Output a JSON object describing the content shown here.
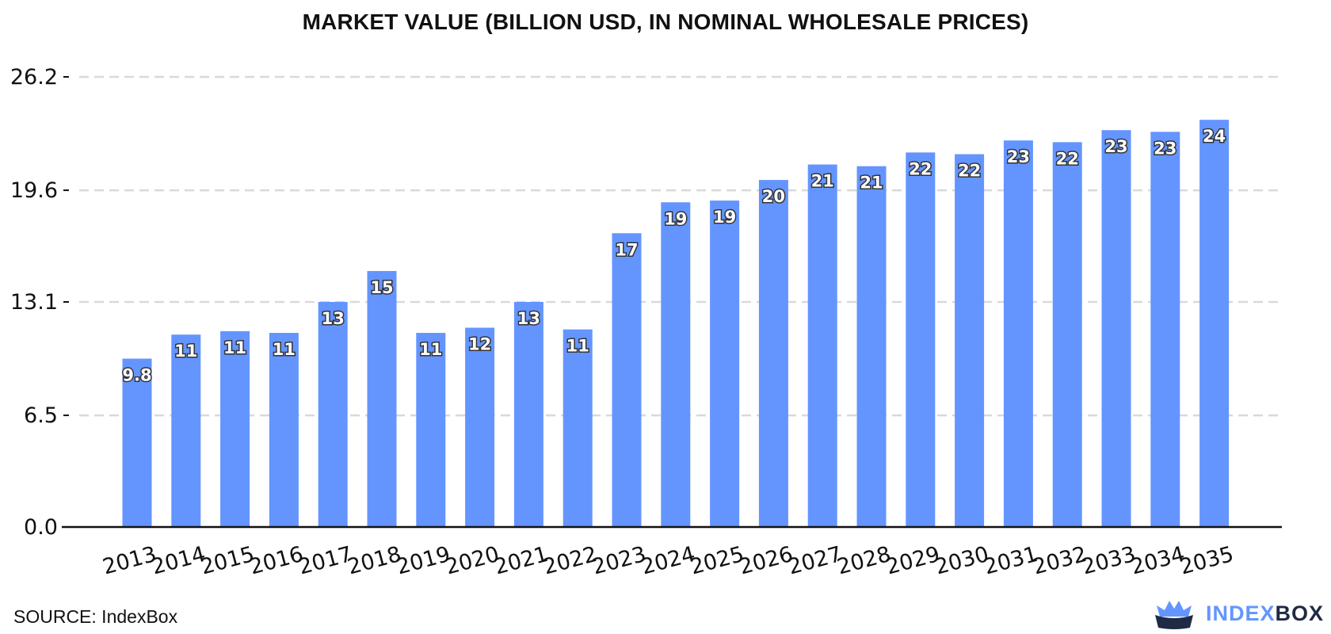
{
  "chart_data": {
    "type": "bar",
    "title": "MARKET VALUE (BILLION USD, IN NOMINAL WHOLESALE PRICES)",
    "xlabel": "",
    "ylabel": "",
    "categories": [
      "2013",
      "2014",
      "2015",
      "2016",
      "2017",
      "2018",
      "2019",
      "2020",
      "2021",
      "2022",
      "2023",
      "2024",
      "2025",
      "2026",
      "2027",
      "2028",
      "2029",
      "2030",
      "2031",
      "2032",
      "2033",
      "2034",
      "2035"
    ],
    "values": [
      9.8,
      11.2,
      11.4,
      11.3,
      13.1,
      14.9,
      11.3,
      11.6,
      13.1,
      11.5,
      17.1,
      18.9,
      19.0,
      20.2,
      21.1,
      21.0,
      21.8,
      21.7,
      22.5,
      22.4,
      23.1,
      23.0,
      23.7
    ],
    "data_labels": [
      "9.8",
      "11",
      "11",
      "11",
      "13",
      "15",
      "11",
      "12",
      "13",
      "11",
      "17",
      "19",
      "19",
      "20",
      "21",
      "21",
      "22",
      "22",
      "23",
      "22",
      "23",
      "23",
      "24"
    ],
    "ylim": [
      0,
      26.2
    ],
    "yticks": [
      "0.0",
      "6.5",
      "13.1",
      "19.6",
      "26.2"
    ],
    "ytick_values": [
      0,
      6.5,
      13.1,
      19.6,
      26.2
    ],
    "grid": true,
    "legend": "none",
    "bar_color": "#6495ff"
  },
  "footer": {
    "source": "SOURCE: IndexBox",
    "brand_part1": "INDEX",
    "brand_part2": "BOX"
  },
  "icons": {
    "brand_logo": "crown-box-icon"
  }
}
